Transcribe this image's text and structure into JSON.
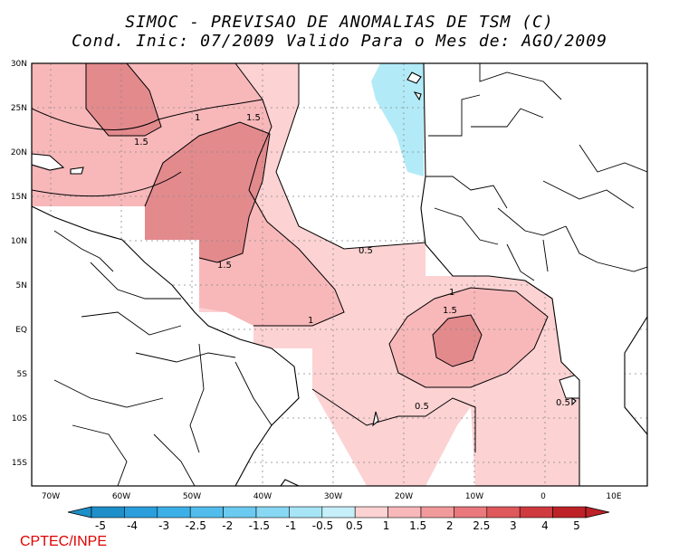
{
  "title": {
    "line1": "SIMOC - PREVISAO DE ANOMALIAS DE TSM (C)",
    "line2": "Cond. Inic: 07/2009   Valido Para o Mes de: AGO/2009"
  },
  "map": {
    "lat_labels": [
      "30N",
      "25N",
      "20N",
      "15N",
      "10N",
      "5N",
      "EQ",
      "5S",
      "10S",
      "15S"
    ],
    "lon_labels": [
      "70W",
      "60W",
      "50W",
      "40W",
      "30W",
      "20W",
      "10W",
      "0",
      "10E"
    ],
    "contour_labels": [
      "1.5",
      "1",
      "1.5",
      "0.5",
      "1.5",
      "1",
      "1.5",
      "1",
      "0.5",
      "0.5"
    ]
  },
  "colorbar": {
    "labels": [
      "-5",
      "-4",
      "-3",
      "-2.5",
      "-2",
      "-1.5",
      "-1",
      "-0.5",
      "0.5",
      "1",
      "1.5",
      "2",
      "2.5",
      "3",
      "4",
      "5"
    ],
    "colors": [
      "#1e8fc8",
      "#2a9fdc",
      "#3cb0e6",
      "#52bdec",
      "#6ccaf0",
      "#88d8f4",
      "#a6e4f6",
      "#c6effa",
      "#ffffff",
      "#fcd2d3",
      "#f8b8ba",
      "#f19a9c",
      "#e9797c",
      "#de585c",
      "#cf3a3f",
      "#bc2227"
    ]
  },
  "footer": "CPTEC/INPE"
}
